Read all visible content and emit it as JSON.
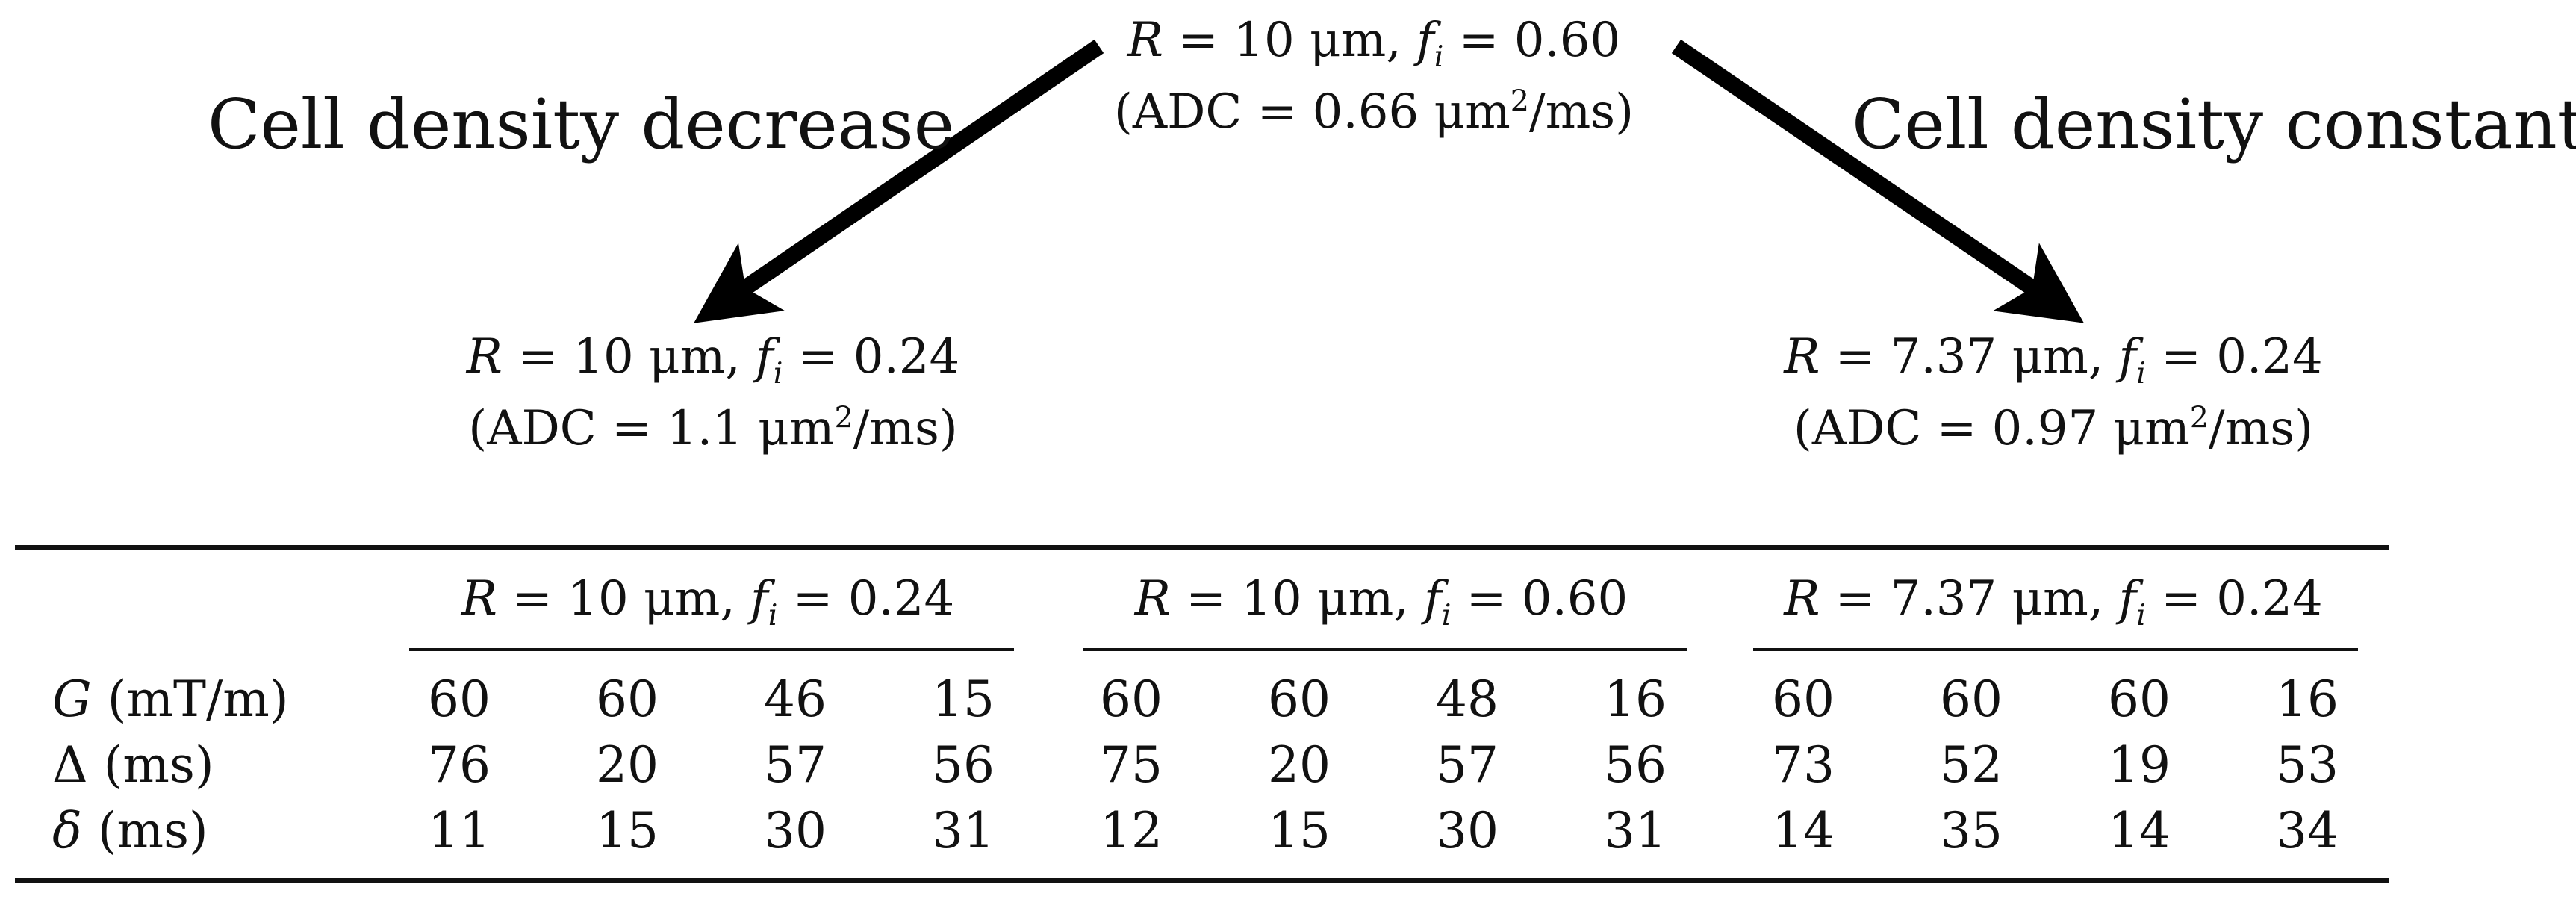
{
  "diagram": {
    "top_node": {
      "line1": {
        "R_sym": "R",
        "R_val": " = 10 μm, ",
        "f_sym": "f",
        "f_sub": "i",
        "f_val": " = 0.60"
      },
      "line2": {
        "pre": "(ADC = 0.66 μm",
        "sup": "2",
        "post": "/ms)"
      }
    },
    "left_branch_label": "Cell density decrease",
    "right_branch_label": "Cell density constant",
    "left_node": {
      "line1": {
        "R_sym": "R",
        "R_val": " = 10 μm, ",
        "f_sym": "f",
        "f_sub": "i",
        "f_val": " = 0.24"
      },
      "line2": {
        "pre": "(ADC = 1.1 μm",
        "sup": "2",
        "post": "/ms)"
      }
    },
    "right_node": {
      "line1": {
        "R_sym": "R",
        "R_val": " = 7.37 μm, ",
        "f_sym": "f",
        "f_sub": "i",
        "f_val": " = 0.24"
      },
      "line2": {
        "pre": "(ADC = 0.97 μm",
        "sup": "2",
        "post": "/ms)"
      }
    }
  },
  "table": {
    "groups": [
      {
        "R_sym": "R",
        "R_val": " = 10 μm, ",
        "f_sym": "f",
        "f_sub": "i",
        "f_val": " = 0.24"
      },
      {
        "R_sym": "R",
        "R_val": " = 10 μm, ",
        "f_sym": "f",
        "f_sub": "i",
        "f_val": " = 0.60"
      },
      {
        "R_sym": "R",
        "R_val": " = 7.37 μm, ",
        "f_sym": "f",
        "f_sub": "i",
        "f_val": " = 0.24"
      }
    ],
    "rows": [
      {
        "sym": "G",
        "unit": " (mT/m)",
        "values": [
          "60",
          "60",
          "46",
          "15",
          "60",
          "60",
          "48",
          "16",
          "60",
          "60",
          "60",
          "16"
        ]
      },
      {
        "sym": "Δ",
        "unit": " (ms)",
        "values": [
          "76",
          "20",
          "57",
          "56",
          "75",
          "20",
          "57",
          "56",
          "73",
          "52",
          "19",
          "53"
        ]
      },
      {
        "sym": "δ",
        "unit": " (ms)",
        "values": [
          "11",
          "15",
          "30",
          "31",
          "12",
          "15",
          "30",
          "31",
          "14",
          "35",
          "14",
          "34"
        ]
      }
    ]
  }
}
